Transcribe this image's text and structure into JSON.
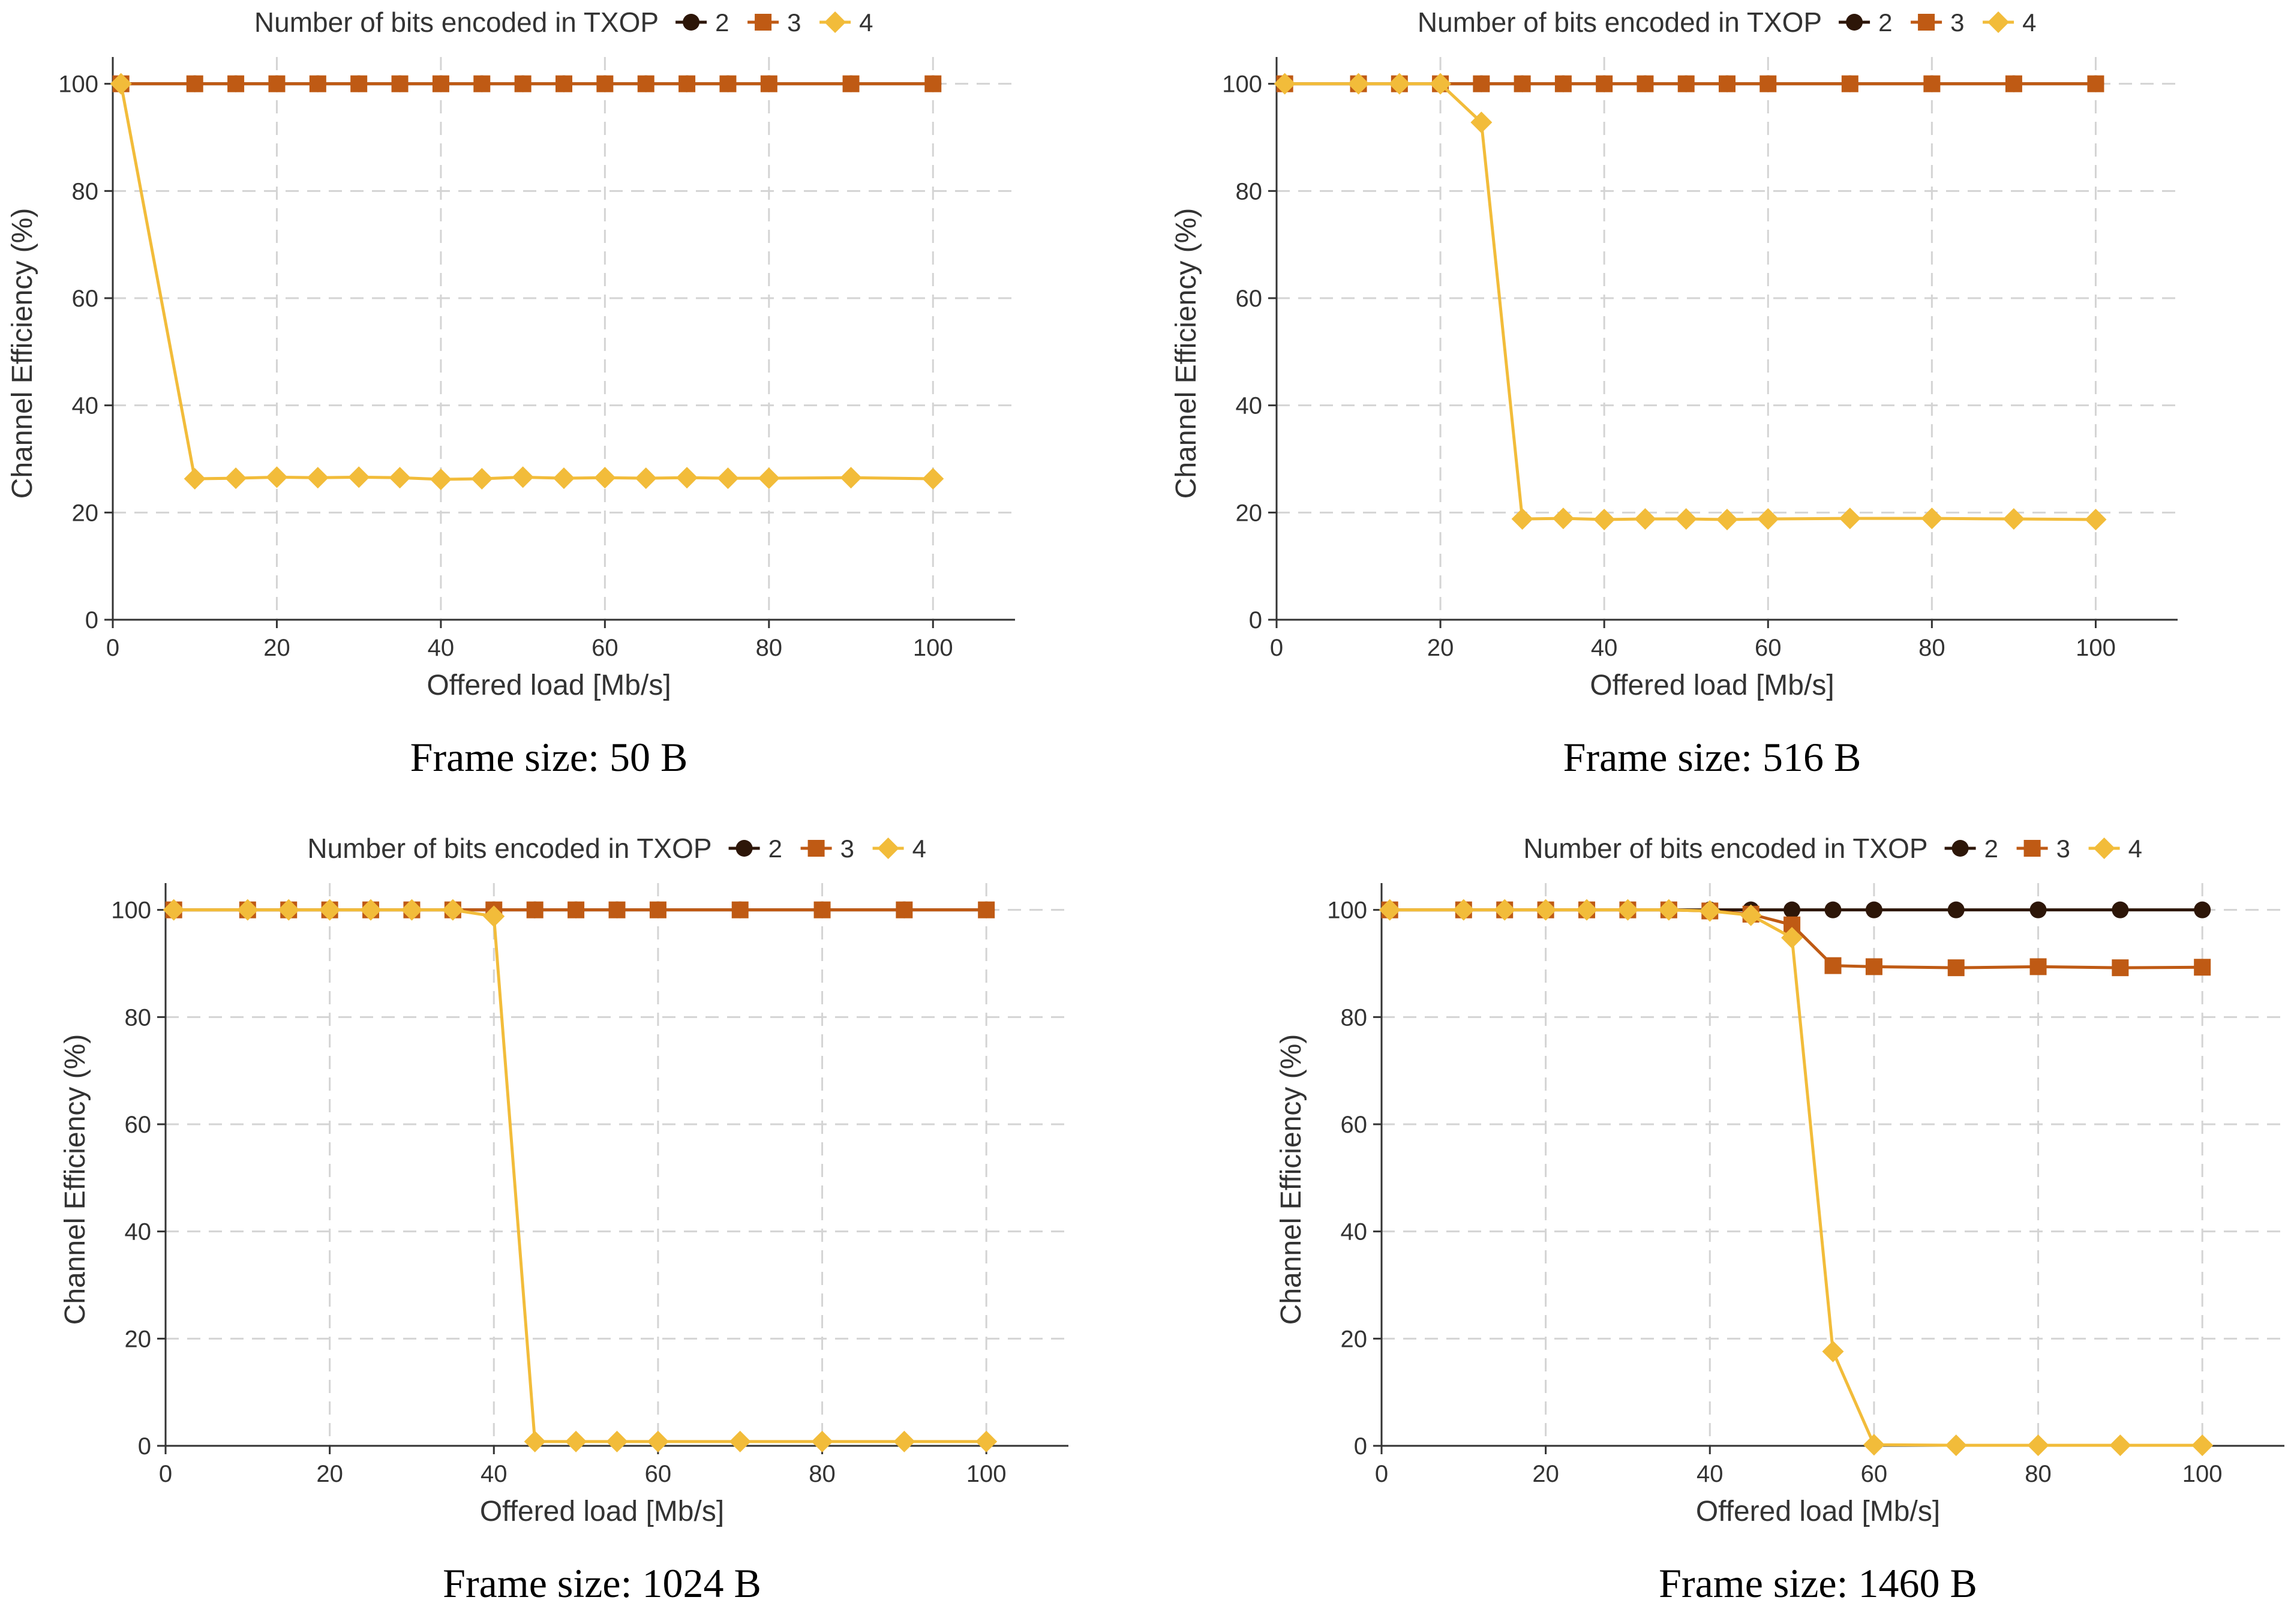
{
  "legend_title": "Number of bits encoded in TXOP",
  "series_styles": [
    {
      "name": "2",
      "color": "#2d1608",
      "marker": "circle"
    },
    {
      "name": "3",
      "color": "#bf5a14",
      "marker": "square"
    },
    {
      "name": "4",
      "color": "#f2bc3a",
      "marker": "diamond"
    }
  ],
  "chart_data": [
    {
      "type": "line",
      "caption": "Frame size: 50 B",
      "xlabel": "Offered load [Mb/s]",
      "ylabel": "Channel Efficiency (%)",
      "xlim": [
        0,
        110
      ],
      "ylim": [
        0,
        105
      ],
      "xticks": [
        0,
        20,
        40,
        60,
        80,
        100
      ],
      "yticks": [
        0,
        20,
        40,
        60,
        80,
        100
      ],
      "grid": true,
      "legend": "top",
      "x": [
        1,
        10,
        15,
        20,
        25,
        30,
        35,
        40,
        45,
        50,
        55,
        60,
        65,
        70,
        75,
        80,
        90,
        100
      ],
      "series": [
        {
          "name": "2",
          "values": [
            100,
            100,
            100,
            100,
            100,
            100,
            100,
            100,
            100,
            100,
            100,
            100,
            100,
            100,
            100,
            100,
            100,
            100
          ]
        },
        {
          "name": "3",
          "values": [
            100,
            100,
            100,
            100,
            100,
            100,
            100,
            100,
            100,
            100,
            100,
            100,
            100,
            100,
            100,
            100,
            100,
            100
          ]
        },
        {
          "name": "4",
          "values": [
            100,
            26.3,
            26.4,
            26.6,
            26.5,
            26.6,
            26.5,
            26.2,
            26.3,
            26.6,
            26.4,
            26.5,
            26.4,
            26.5,
            26.4,
            26.4,
            26.5,
            26.3
          ]
        }
      ]
    },
    {
      "type": "line",
      "caption": "Frame size: 516 B",
      "xlabel": "Offered load [Mb/s]",
      "ylabel": "Channel Efficiency (%)",
      "xlim": [
        0,
        110
      ],
      "ylim": [
        0,
        105
      ],
      "xticks": [
        0,
        20,
        40,
        60,
        80,
        100
      ],
      "yticks": [
        0,
        20,
        40,
        60,
        80,
        100
      ],
      "grid": true,
      "legend": "top",
      "x": [
        1,
        10,
        15,
        20,
        25,
        30,
        35,
        40,
        45,
        50,
        55,
        60,
        70,
        80,
        90,
        100
      ],
      "series": [
        {
          "name": "2",
          "values": [
            100,
            100,
            100,
            100,
            100,
            100,
            100,
            100,
            100,
            100,
            100,
            100,
            100,
            100,
            100,
            100
          ]
        },
        {
          "name": "3",
          "values": [
            100,
            100,
            100,
            100,
            100,
            100,
            100,
            100,
            100,
            100,
            100,
            100,
            100,
            100,
            100,
            100
          ]
        },
        {
          "name": "4",
          "values": [
            100,
            100,
            100,
            100,
            92.8,
            18.8,
            18.9,
            18.7,
            18.8,
            18.8,
            18.7,
            18.8,
            18.9,
            18.9,
            18.8,
            18.7
          ]
        }
      ]
    },
    {
      "type": "line",
      "caption": "Frame size: 1024 B",
      "xlabel": "Offered load [Mb/s]",
      "ylabel": "Channel Efficiency (%)",
      "xlim": [
        0,
        110
      ],
      "ylim": [
        0,
        105
      ],
      "xticks": [
        0,
        20,
        40,
        60,
        80,
        100
      ],
      "yticks": [
        0,
        20,
        40,
        60,
        80,
        100
      ],
      "grid": true,
      "legend": "top",
      "x": [
        1,
        10,
        15,
        20,
        25,
        30,
        35,
        40,
        45,
        50,
        55,
        60,
        70,
        80,
        90,
        100
      ],
      "series": [
        {
          "name": "2",
          "values": [
            100,
            100,
            100,
            100,
            100,
            100,
            100,
            100,
            100,
            100,
            100,
            100,
            100,
            100,
            100,
            100
          ]
        },
        {
          "name": "3",
          "values": [
            100,
            100,
            100,
            100,
            100,
            100,
            100,
            100,
            100,
            100,
            100,
            100,
            100,
            100,
            100,
            100
          ]
        },
        {
          "name": "4",
          "values": [
            100,
            100,
            100,
            100,
            100,
            100,
            100,
            98.8,
            0.8,
            0.8,
            0.8,
            0.8,
            0.8,
            0.8,
            0.8,
            0.8
          ]
        }
      ]
    },
    {
      "type": "line",
      "caption": "Frame size: 1460 B",
      "xlabel": "Offered load [Mb/s]",
      "ylabel": "Channel Efficiency (%)",
      "xlim": [
        0,
        110
      ],
      "ylim": [
        0,
        105
      ],
      "xticks": [
        0,
        20,
        40,
        60,
        80,
        100
      ],
      "yticks": [
        0,
        20,
        40,
        60,
        80,
        100
      ],
      "grid": true,
      "legend": "top",
      "x": [
        1,
        10,
        15,
        20,
        25,
        30,
        35,
        40,
        45,
        50,
        55,
        60,
        70,
        80,
        90,
        100
      ],
      "series": [
        {
          "name": "2",
          "values": [
            100,
            100,
            100,
            100,
            100,
            100,
            100,
            100,
            100,
            100,
            100,
            100,
            100,
            100,
            100,
            100
          ]
        },
        {
          "name": "3",
          "values": [
            100,
            100,
            100,
            100,
            100,
            100,
            100,
            99.8,
            99.2,
            97.2,
            89.6,
            89.4,
            89.2,
            89.4,
            89.2,
            89.3
          ]
        },
        {
          "name": "4",
          "values": [
            100,
            100,
            100,
            100,
            100,
            100,
            100,
            99.8,
            99.0,
            94.8,
            17.6,
            0.2,
            0.1,
            0.1,
            0.1,
            0.1
          ]
        }
      ]
    }
  ]
}
